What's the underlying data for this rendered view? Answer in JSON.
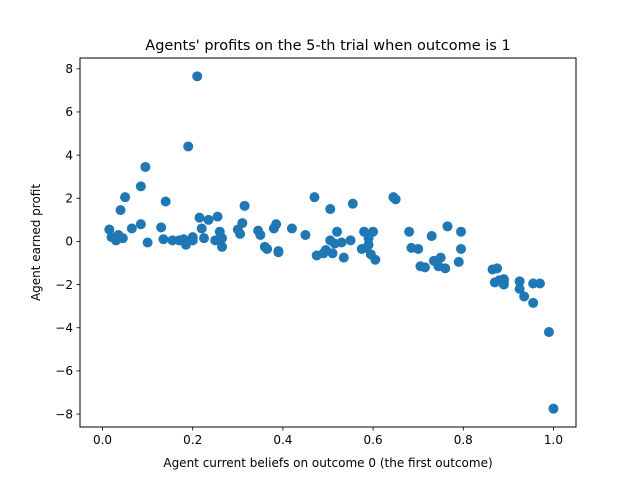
{
  "chart_data": {
    "type": "scatter",
    "title": "Agents' profits on the 5-th trial when outcome is 1",
    "xlabel": "Agent current beliefs on outcome 0 (the first outcome)",
    "ylabel": "Agent earned profit",
    "xlim": [
      -0.05,
      1.05
    ],
    "ylim": [
      -8.6,
      8.5
    ],
    "xticks": [
      0.0,
      0.2,
      0.4,
      0.6,
      0.8,
      1.0
    ],
    "xtick_labels": [
      "0.0",
      "0.2",
      "0.4",
      "0.6",
      "0.8",
      "1.0"
    ],
    "yticks": [
      -8,
      -6,
      -4,
      -2,
      0,
      2,
      4,
      6,
      8
    ],
    "ytick_labels": [
      "−8",
      "−6",
      "−4",
      "−2",
      "0",
      "2",
      "4",
      "6",
      "8"
    ],
    "grid": false,
    "marker_color": "#1f77b4",
    "series": [
      {
        "points": [
          [
            0.015,
            0.55
          ],
          [
            0.02,
            0.2
          ],
          [
            0.03,
            0.05
          ],
          [
            0.035,
            0.3
          ],
          [
            0.04,
            1.45
          ],
          [
            0.045,
            0.15
          ],
          [
            0.05,
            2.05
          ],
          [
            0.065,
            0.6
          ],
          [
            0.085,
            2.55
          ],
          [
            0.085,
            0.8
          ],
          [
            0.095,
            3.45
          ],
          [
            0.1,
            -0.05
          ],
          [
            0.13,
            0.65
          ],
          [
            0.135,
            0.1
          ],
          [
            0.14,
            1.85
          ],
          [
            0.155,
            0.05
          ],
          [
            0.17,
            0.05
          ],
          [
            0.18,
            0.1
          ],
          [
            0.185,
            -0.15
          ],
          [
            0.19,
            4.4
          ],
          [
            0.2,
            0.2
          ],
          [
            0.2,
            0.05
          ],
          [
            0.21,
            7.65
          ],
          [
            0.215,
            1.1
          ],
          [
            0.22,
            0.6
          ],
          [
            0.225,
            0.15
          ],
          [
            0.235,
            1.0
          ],
          [
            0.25,
            0.05
          ],
          [
            0.255,
            1.15
          ],
          [
            0.26,
            0.45
          ],
          [
            0.265,
            0.15
          ],
          [
            0.265,
            -0.25
          ],
          [
            0.3,
            0.55
          ],
          [
            0.305,
            0.35
          ],
          [
            0.31,
            0.85
          ],
          [
            0.315,
            1.65
          ],
          [
            0.345,
            0.5
          ],
          [
            0.35,
            0.3
          ],
          [
            0.36,
            -0.25
          ],
          [
            0.365,
            -0.35
          ],
          [
            0.38,
            0.6
          ],
          [
            0.385,
            0.8
          ],
          [
            0.39,
            -0.45
          ],
          [
            0.39,
            -0.5
          ],
          [
            0.42,
            0.6
          ],
          [
            0.45,
            0.3
          ],
          [
            0.47,
            2.05
          ],
          [
            0.475,
            -0.65
          ],
          [
            0.49,
            -0.55
          ],
          [
            0.495,
            -0.4
          ],
          [
            0.505,
            1.5
          ],
          [
            0.505,
            0.05
          ],
          [
            0.51,
            -0.55
          ],
          [
            0.515,
            -0.1
          ],
          [
            0.52,
            0.45
          ],
          [
            0.53,
            -0.05
          ],
          [
            0.535,
            -0.75
          ],
          [
            0.55,
            0.05
          ],
          [
            0.555,
            1.75
          ],
          [
            0.575,
            -0.35
          ],
          [
            0.58,
            0.45
          ],
          [
            0.585,
            -0.3
          ],
          [
            0.59,
            0.15
          ],
          [
            0.59,
            -0.15
          ],
          [
            0.595,
            -0.6
          ],
          [
            0.6,
            0.45
          ],
          [
            0.605,
            -0.85
          ],
          [
            0.645,
            2.05
          ],
          [
            0.65,
            1.95
          ],
          [
            0.68,
            0.45
          ],
          [
            0.685,
            -0.3
          ],
          [
            0.7,
            -0.35
          ],
          [
            0.705,
            -1.15
          ],
          [
            0.715,
            -1.2
          ],
          [
            0.73,
            0.25
          ],
          [
            0.735,
            -0.9
          ],
          [
            0.745,
            -1.15
          ],
          [
            0.75,
            -0.75
          ],
          [
            0.76,
            -1.25
          ],
          [
            0.765,
            0.7
          ],
          [
            0.79,
            -0.95
          ],
          [
            0.795,
            0.45
          ],
          [
            0.795,
            -0.35
          ],
          [
            0.865,
            -1.3
          ],
          [
            0.87,
            -1.9
          ],
          [
            0.875,
            -1.25
          ],
          [
            0.88,
            -1.8
          ],
          [
            0.89,
            -1.85
          ],
          [
            0.89,
            -2.0
          ],
          [
            0.89,
            -1.75
          ],
          [
            0.925,
            -1.85
          ],
          [
            0.925,
            -2.2
          ],
          [
            0.935,
            -2.55
          ],
          [
            0.955,
            -1.95
          ],
          [
            0.955,
            -2.85
          ],
          [
            0.97,
            -1.95
          ],
          [
            0.99,
            -4.2
          ],
          [
            1.0,
            -7.75
          ]
        ]
      }
    ]
  }
}
